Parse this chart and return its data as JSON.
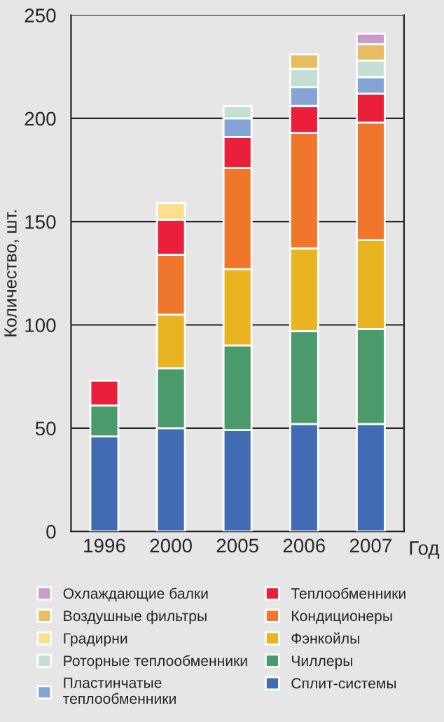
{
  "chart_data": {
    "type": "bar",
    "stacked": true,
    "ylabel": "Количество, шт.",
    "xlabel": "Год",
    "categories": [
      "1996",
      "2000",
      "2005",
      "2006",
      "2007"
    ],
    "series": [
      {
        "name": "Сплит-системы",
        "color": "#416bb3",
        "values": [
          46,
          50,
          49,
          52,
          52
        ]
      },
      {
        "name": "Чиллеры",
        "color": "#4a9a6c",
        "values": [
          15,
          29,
          41,
          45,
          46
        ]
      },
      {
        "name": "Фэнкойлы",
        "color": "#e9b321",
        "values": [
          null,
          26,
          37,
          40,
          43
        ]
      },
      {
        "name": "Кондиционеры",
        "color": "#ef762b",
        "values": [
          null,
          29,
          49,
          56,
          57
        ]
      },
      {
        "name": "Теплообменники",
        "color": "#ec1f3b",
        "values": [
          12,
          17,
          15,
          13,
          14
        ]
      },
      {
        "name": "Пластинчатые\nтеплообменники",
        "color": "#85a4d6",
        "values": [
          null,
          null,
          9,
          9,
          8
        ]
      },
      {
        "name": "Роторные теплообменники",
        "color": "#c5dfd4",
        "values": [
          null,
          null,
          6,
          9,
          8
        ]
      },
      {
        "name": "Градирни",
        "color": "#fde08f",
        "values": [
          null,
          8,
          null,
          null,
          null
        ]
      },
      {
        "name": "Воздушные фильтры",
        "color": "#e6bd63",
        "values": [
          null,
          null,
          null,
          7,
          8
        ]
      },
      {
        "name": "Охлаждающие балки",
        "color": "#c79cc8",
        "values": [
          null,
          null,
          null,
          null,
          5
        ]
      }
    ],
    "ylim": [
      0,
      250
    ],
    "yticks": [
      0,
      50,
      100,
      150,
      200,
      250
    ],
    "grid": "y",
    "legend": "bottom"
  }
}
